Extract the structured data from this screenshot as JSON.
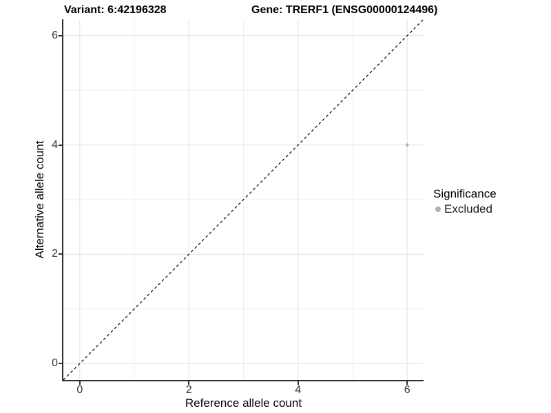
{
  "figure": {
    "kind": "scatter plot with identity line"
  },
  "chart_data": {
    "type": "scatter",
    "title_left": "Variant: 6:42196328",
    "title_right": "Gene: TRERF1 (ENSG00000124496)",
    "xlabel": "Reference allele count",
    "ylabel": "Alternative allele count",
    "xlim": [
      -0.3,
      6.3
    ],
    "ylim": [
      -0.3,
      6.3
    ],
    "x_ticks": [
      0,
      2,
      4,
      6
    ],
    "y_ticks": [
      0,
      2,
      4,
      6
    ],
    "x_minor": [
      1,
      3,
      5
    ],
    "y_minor": [
      1,
      3,
      5
    ],
    "grid": "major and minor gridlines on white panel",
    "points": [
      {
        "x": 6,
        "y": 4,
        "series": "Excluded",
        "color": "#b0b0b0",
        "radius": 2.3
      }
    ],
    "reference_line": {
      "slope": 1,
      "intercept": 0,
      "style": "dashed",
      "color": "#111111"
    },
    "legend": {
      "title": "Significance",
      "position": "right",
      "entries": [
        {
          "label": "Excluded",
          "marker": "circle",
          "color": "#b0b0b0"
        }
      ]
    },
    "colors": {
      "axis_line": "#2e2e2e",
      "tick_text": "#333333",
      "major_grid": "#e3e3e3",
      "minor_grid": "#f0f0f0",
      "background": "#ffffff"
    }
  }
}
